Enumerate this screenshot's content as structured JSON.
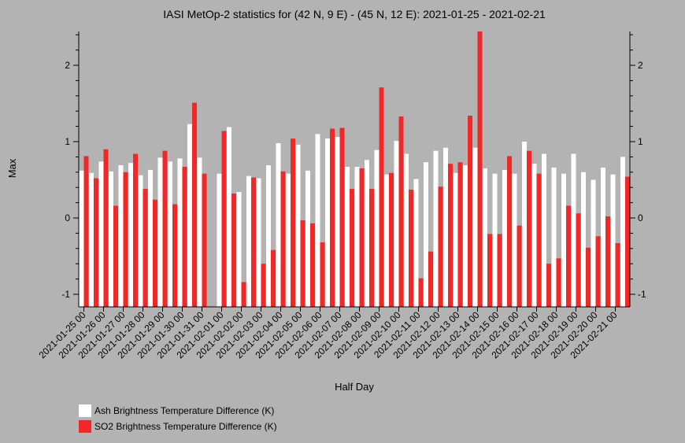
{
  "chart_data": {
    "type": "bar",
    "title": "IASI MetOp-2 statistics for (42 N, 9 E) - (45 N, 12 E): 2021-01-25 - 2021-02-21",
    "xlabel": "Half Day",
    "ylabel": "Max",
    "ylim": [
      -1.17,
      2.45
    ],
    "yticks": [
      -1,
      0,
      1,
      2
    ],
    "grid": false,
    "legend_position": "bottom-left",
    "tick_labels": [
      "2021-01-25 00",
      "2021-01-26 00",
      "2021-01-27 00",
      "2021-01-28 00",
      "2021-01-29 00",
      "2021-01-30 00",
      "2021-01-31 00",
      "2021-02-01 00",
      "2021-02-02 00",
      "2021-02-03 00",
      "2021-02-04 00",
      "2021-02-05 00",
      "2021-02-06 00",
      "2021-02-07 00",
      "2021-02-08 00",
      "2021-02-09 00",
      "2021-02-10 00",
      "2021-02-11 00",
      "2021-02-12 00",
      "2021-02-13 00",
      "2021-02-14 00",
      "2021-02-15 00",
      "2021-02-16 00",
      "2021-02-17 00",
      "2021-02-18 00",
      "2021-02-19 00",
      "2021-02-20 00",
      "2021-02-21 00"
    ],
    "series": [
      {
        "name": "Ash Brightness Temperature Difference (K)",
        "color": "#ffffff",
        "values": [
          0.62,
          0.59,
          0.74,
          0.61,
          0.69,
          0.72,
          0.56,
          0.63,
          0.79,
          0.74,
          0.78,
          1.23,
          0.79,
          null,
          0.58,
          1.19,
          0.34,
          0.55,
          0.52,
          0.69,
          0.98,
          0.58,
          0.96,
          0.62,
          1.1,
          1.04,
          1.06,
          0.67,
          0.67,
          0.76,
          0.89,
          0.57,
          1.01,
          0.84,
          0.51,
          0.73,
          0.88,
          0.92,
          0.59,
          0.69,
          0.92,
          0.65,
          0.58,
          0.63,
          0.58,
          1.0,
          0.71,
          0.84,
          0.66,
          0.58,
          0.84,
          0.6,
          0.5,
          0.66,
          0.57,
          0.8
        ]
      },
      {
        "name": "SO2 Brightness Temperature Difference (K)",
        "color": "#f22727",
        "values": [
          0.81,
          0.52,
          0.9,
          0.16,
          0.6,
          0.84,
          0.38,
          0.24,
          0.88,
          0.18,
          0.67,
          1.51,
          0.58,
          null,
          1.14,
          0.32,
          -0.84,
          0.53,
          -0.6,
          -0.42,
          0.61,
          1.04,
          -0.03,
          -0.07,
          -0.32,
          1.17,
          1.18,
          0.38,
          0.65,
          0.38,
          1.71,
          0.59,
          1.33,
          0.37,
          -0.79,
          -0.44,
          0.41,
          0.71,
          0.73,
          1.34,
          2.45,
          -0.21,
          -0.21,
          0.81,
          -0.1,
          0.88,
          0.58,
          -0.6,
          -0.53,
          0.16,
          0.06,
          -0.39,
          -0.24,
          0.02,
          -0.33,
          0.54
        ]
      }
    ]
  }
}
